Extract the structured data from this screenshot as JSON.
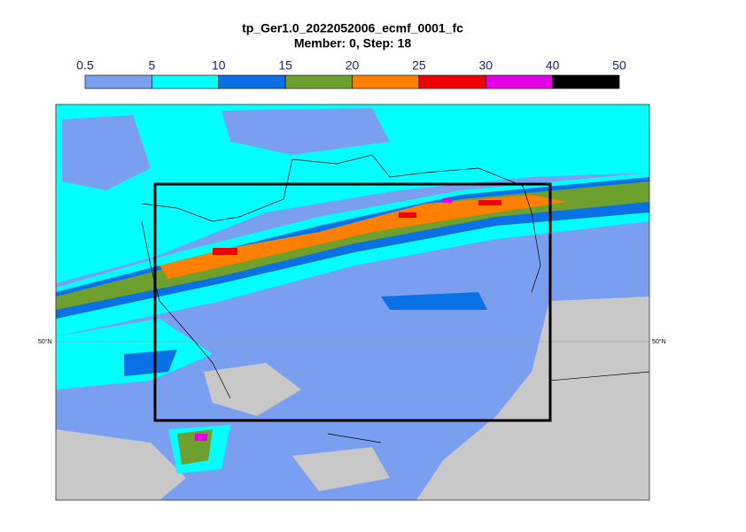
{
  "header": {
    "title": "tp_Ger1.0_2022052006_ecmf_0001_fc",
    "subtitle": "Member: 0, Step: 18"
  },
  "colorbar": {
    "levels": [
      0.5,
      5,
      10,
      15,
      20,
      25,
      30,
      40,
      50
    ],
    "colors": [
      "#7b9ff0",
      "#00ffff",
      "#0a70e6",
      "#6ea02d",
      "#ff8000",
      "#f00000",
      "#e600e6",
      "#000000"
    ]
  },
  "map": {
    "latitude_labels": [
      "50°N",
      "50°N"
    ]
  }
}
